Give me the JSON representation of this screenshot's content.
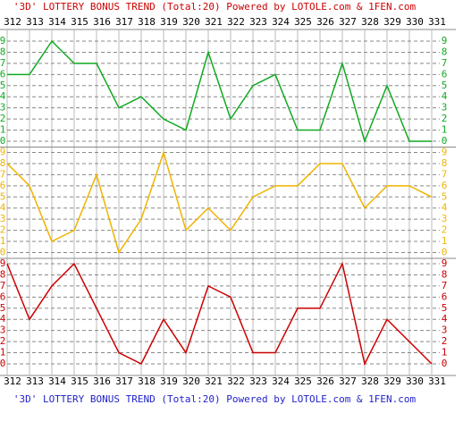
{
  "chart_data": {
    "type": "line",
    "title": "'3D' LOTTERY BONUS TREND (Total:20)  Powered by LOTOLE.com & 1FEN.com",
    "categories": [
      "312",
      "313",
      "314",
      "315",
      "316",
      "317",
      "318",
      "319",
      "320",
      "321",
      "322",
      "323",
      "324",
      "325",
      "326",
      "327",
      "328",
      "329",
      "330",
      "331"
    ],
    "ylim": [
      0,
      9
    ],
    "yticks": [
      0,
      1,
      2,
      3,
      4,
      5,
      6,
      7,
      8,
      9
    ],
    "grid": true,
    "series": [
      {
        "color": "#11aa22",
        "values": [
          6,
          6,
          9,
          7,
          7,
          3,
          4,
          2,
          1,
          8,
          2,
          5,
          6,
          1,
          1,
          7,
          0,
          5,
          0,
          0
        ]
      },
      {
        "color": "#f0b400",
        "values": [
          8,
          6,
          1,
          2,
          7,
          0,
          3,
          9,
          2,
          4,
          2,
          5,
          6,
          6,
          8,
          8,
          4,
          6,
          6,
          5
        ]
      },
      {
        "color": "#cc0000",
        "values": [
          9,
          4,
          7,
          9,
          5,
          1,
          0,
          4,
          1,
          7,
          6,
          1,
          1,
          5,
          5,
          9,
          0,
          4,
          2,
          0
        ]
      }
    ]
  }
}
